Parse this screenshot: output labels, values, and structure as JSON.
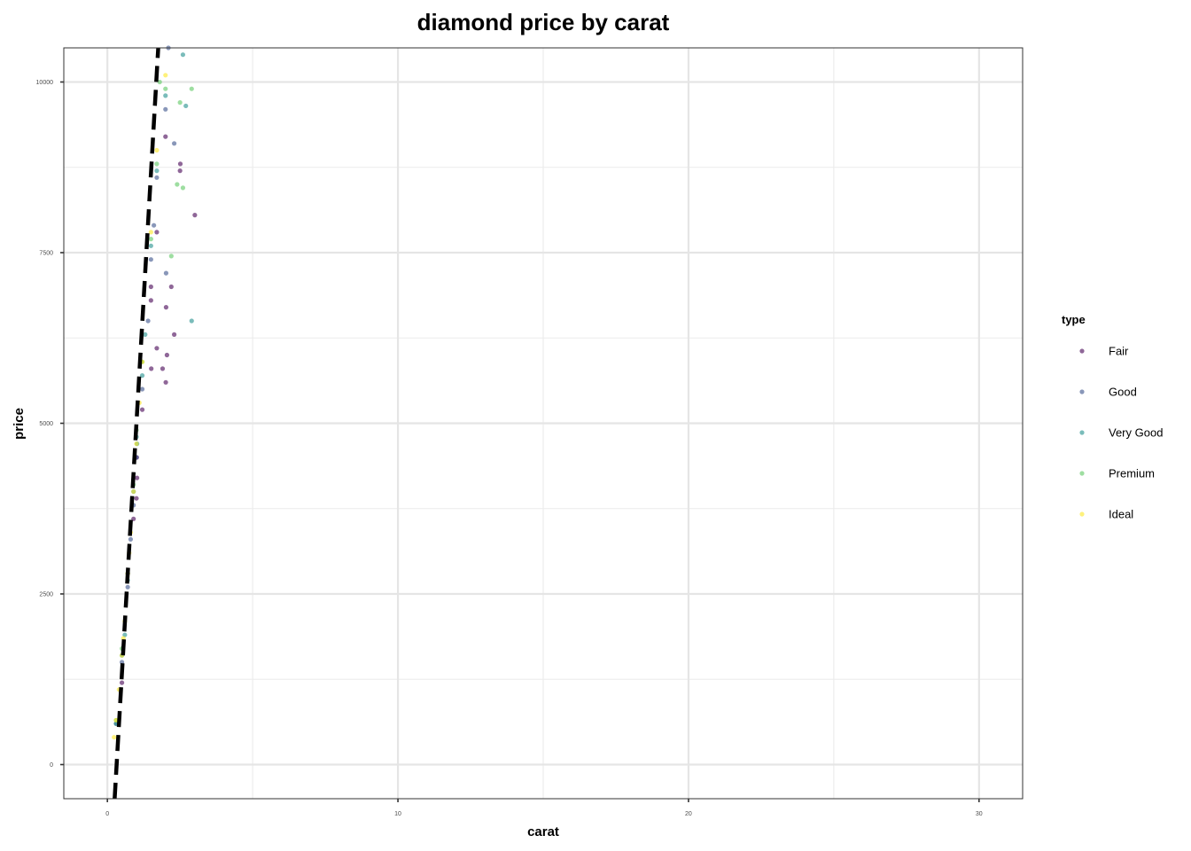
{
  "chart_data": {
    "type": "scatter",
    "title": "diamond price by carat",
    "xlabel": "carat",
    "ylabel": "price",
    "xlim": [
      -1.5,
      31.5
    ],
    "ylim": [
      -500,
      10500
    ],
    "x_ticks": [
      0,
      10,
      20,
      30
    ],
    "y_ticks": [
      0,
      2500,
      5000,
      7500,
      10000
    ],
    "x_tick_labels": [
      "0",
      "10",
      "20",
      "30"
    ],
    "y_tick_labels": [
      "0",
      "2500",
      "5000",
      "7500",
      "10000"
    ],
    "grid": true,
    "legend": {
      "title": "type",
      "placement": "right",
      "entries": [
        "Fair",
        "Good",
        "Very Good",
        "Premium",
        "Ideal"
      ]
    },
    "series": [
      {
        "name": "Fair",
        "color": "#440154",
        "x": [
          0.7,
          0.9,
          1.0,
          1.01,
          1.2,
          1.5,
          1.7,
          2.0,
          2.01,
          2.02,
          2.5,
          2.51,
          3.01,
          1.51,
          1.7,
          2.2,
          2.3,
          0.5,
          1.02,
          1.5,
          2.05,
          1.9
        ],
        "y": [
          2800,
          3600,
          3900,
          4500,
          5200,
          7000,
          7800,
          9200,
          5600,
          6700,
          8700,
          8800,
          8050,
          5800,
          6100,
          7000,
          6300,
          1200,
          4200,
          6800,
          6000,
          5800
        ]
      },
      {
        "name": "Good",
        "color": "#3b528b",
        "x": [
          0.3,
          0.5,
          0.7,
          0.9,
          1.0,
          1.2,
          1.5,
          1.7,
          2.0,
          2.1,
          2.3,
          1.4,
          0.8,
          1.6,
          2.02
        ],
        "y": [
          600,
          1500,
          2600,
          3800,
          4500,
          5500,
          7400,
          8600,
          9600,
          10500,
          9100,
          6500,
          3300,
          7900,
          7200
        ]
      },
      {
        "name": "Very Good",
        "color": "#21908c",
        "x": [
          0.3,
          0.5,
          0.7,
          0.9,
          1.0,
          1.2,
          1.5,
          1.7,
          2.0,
          2.7,
          2.9,
          2.6,
          1.02,
          1.3,
          0.6
        ],
        "y": [
          600,
          1600,
          2700,
          4000,
          4800,
          5700,
          7600,
          8700,
          9800,
          9650,
          6500,
          10400,
          4700,
          6300,
          1900
        ]
      },
      {
        "name": "Premium",
        "color": "#5dc863",
        "x": [
          0.3,
          0.5,
          0.7,
          0.9,
          1.0,
          1.2,
          1.5,
          1.7,
          2.0,
          2.2,
          2.6,
          2.9,
          2.5,
          2.4,
          1.8
        ],
        "y": [
          650,
          1700,
          2800,
          4100,
          4900,
          5900,
          7700,
          8800,
          9900,
          7450,
          8450,
          9900,
          9700,
          8500,
          10000
        ]
      },
      {
        "name": "Ideal",
        "color": "#fde725",
        "x": [
          0.23,
          0.3,
          0.4,
          0.5,
          0.6,
          0.7,
          0.8,
          0.9,
          1.0,
          1.1,
          1.2,
          1.5,
          1.7,
          2.0,
          0.55,
          0.75
        ],
        "y": [
          400,
          650,
          1100,
          1600,
          2100,
          2800,
          3400,
          4000,
          4700,
          5300,
          5900,
          7800,
          9000,
          10100,
          1850,
          3100
        ]
      }
    ],
    "trend_line": {
      "style": "dashed",
      "color": "#000000",
      "x": [
        0.25,
        1.75
      ],
      "y": [
        -500,
        10500
      ]
    }
  }
}
